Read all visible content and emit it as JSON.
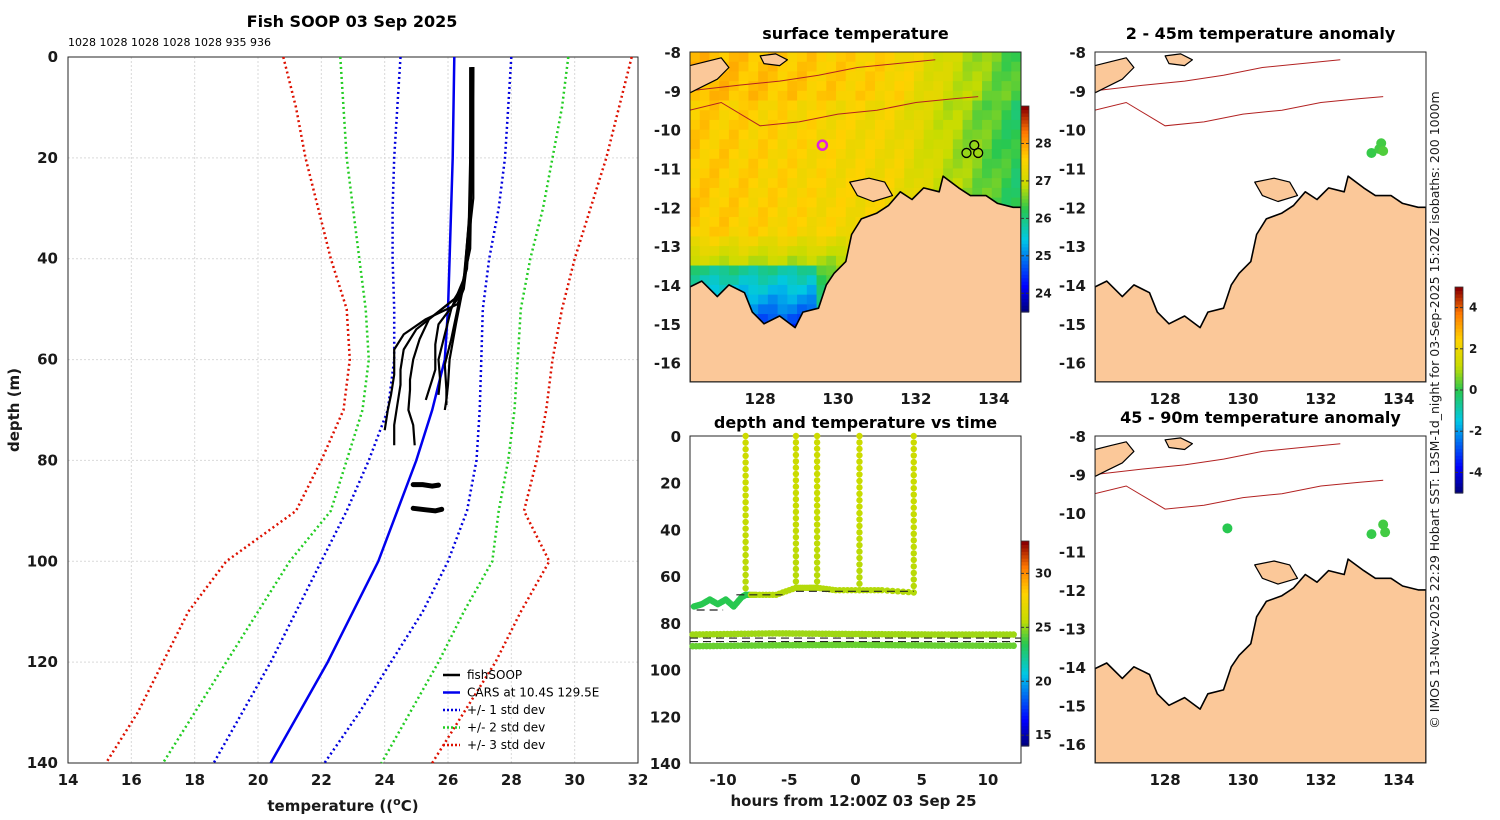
{
  "figure_title": "Fish SOOP 03 Sep 2025",
  "drop_labels": "1028 1028 1028 1028 1028 935 936",
  "side_text": "© IMOS 13-Nov-2025 22:29 Hobart SST: L3SM-1d_night for 03-Sep-2025 15:20Z isobaths: 200  1000m",
  "colors": {
    "profile": "#000000",
    "cars": "#0000ee",
    "std1": "#0000dd",
    "std2": "#22cc22",
    "std3": "#dd1100",
    "land": "#fbc899",
    "isobath": "#b22222"
  },
  "chart_data": [
    {
      "id": "profile",
      "type": "line",
      "title": "Fish SOOP 03 Sep 2025",
      "xlabel": "temperature (°C)",
      "ylabel": "depth (m)",
      "xlim": [
        14,
        32
      ],
      "ylim": [
        140,
        0
      ],
      "xticks": [
        14,
        16,
        18,
        20,
        22,
        24,
        26,
        28,
        30,
        32
      ],
      "yticks": [
        0,
        20,
        40,
        60,
        80,
        100,
        120,
        140
      ],
      "grid": true,
      "legend_position": "bottom-right",
      "legend": [
        "fishSOOP",
        "CARS at 10.4S 129.5E",
        "+/- 1 std dev",
        "+/- 2 std dev",
        "+/- 3 std dev"
      ],
      "series": [
        {
          "name": "CARS at 10.4S 129.5E",
          "style": "solid",
          "points": [
            [
              26.2,
              0
            ],
            [
              26.15,
              20
            ],
            [
              26.05,
              40
            ],
            [
              26.0,
              50
            ],
            [
              25.9,
              60
            ],
            [
              25.5,
              70
            ],
            [
              25.0,
              80
            ],
            [
              24.4,
              90
            ],
            [
              23.8,
              100
            ],
            [
              23.0,
              110
            ],
            [
              22.2,
              120
            ],
            [
              21.3,
              130
            ],
            [
              20.4,
              140
            ]
          ]
        },
        {
          "name": "+/- 1 std dev (low)",
          "style": "dotted",
          "color_key": "std1",
          "points": [
            [
              24.5,
              0
            ],
            [
              24.4,
              10
            ],
            [
              24.3,
              20
            ],
            [
              24.25,
              30
            ],
            [
              24.25,
              40
            ],
            [
              24.3,
              50
            ],
            [
              24.3,
              60
            ],
            [
              24.1,
              70
            ],
            [
              23.5,
              80
            ],
            [
              22.8,
              90
            ],
            [
              22.0,
              100
            ],
            [
              21.2,
              110
            ],
            [
              20.4,
              120
            ],
            [
              19.5,
              130
            ],
            [
              18.6,
              140
            ]
          ]
        },
        {
          "name": "+/- 1 std dev (high)",
          "style": "dotted",
          "color_key": "std1",
          "points": [
            [
              28.0,
              0
            ],
            [
              27.9,
              10
            ],
            [
              27.8,
              20
            ],
            [
              27.6,
              30
            ],
            [
              27.3,
              40
            ],
            [
              27.1,
              50
            ],
            [
              27.05,
              60
            ],
            [
              27.0,
              70
            ],
            [
              26.9,
              80
            ],
            [
              26.6,
              90
            ],
            [
              26.0,
              100
            ],
            [
              25.2,
              110
            ],
            [
              24.2,
              120
            ],
            [
              23.2,
              130
            ],
            [
              22.1,
              140
            ]
          ]
        },
        {
          "name": "+/- 2 std dev (low)",
          "style": "dotted",
          "color_key": "std2",
          "points": [
            [
              22.6,
              0
            ],
            [
              22.7,
              10
            ],
            [
              22.8,
              20
            ],
            [
              23.0,
              30
            ],
            [
              23.2,
              40
            ],
            [
              23.4,
              50
            ],
            [
              23.5,
              60
            ],
            [
              23.3,
              70
            ],
            [
              22.8,
              80
            ],
            [
              22.3,
              90
            ],
            [
              21.0,
              100
            ],
            [
              20.0,
              110
            ],
            [
              19.0,
              120
            ],
            [
              18.0,
              130
            ],
            [
              17.0,
              140
            ]
          ]
        },
        {
          "name": "+/- 2 std dev (high)",
          "style": "dotted",
          "color_key": "std2",
          "points": [
            [
              29.8,
              0
            ],
            [
              29.6,
              10
            ],
            [
              29.3,
              20
            ],
            [
              29.0,
              30
            ],
            [
              28.6,
              40
            ],
            [
              28.3,
              50
            ],
            [
              28.2,
              60
            ],
            [
              28.1,
              70
            ],
            [
              27.9,
              80
            ],
            [
              27.6,
              90
            ],
            [
              27.4,
              100
            ],
            [
              26.5,
              110
            ],
            [
              25.7,
              120
            ],
            [
              24.8,
              130
            ],
            [
              23.9,
              140
            ]
          ]
        },
        {
          "name": "+/- 3 std dev (low)",
          "style": "dotted",
          "color_key": "std3",
          "points": [
            [
              20.8,
              0
            ],
            [
              21.2,
              10
            ],
            [
              21.5,
              20
            ],
            [
              21.9,
              30
            ],
            [
              22.3,
              40
            ],
            [
              22.8,
              50
            ],
            [
              22.9,
              60
            ],
            [
              22.7,
              70
            ],
            [
              22.0,
              80
            ],
            [
              21.2,
              90
            ],
            [
              19.0,
              100
            ],
            [
              17.8,
              110
            ],
            [
              17.0,
              120
            ],
            [
              16.2,
              130
            ],
            [
              15.2,
              140
            ]
          ]
        },
        {
          "name": "+/- 3 std dev (high)",
          "style": "dotted",
          "color_key": "std3",
          "points": [
            [
              31.8,
              0
            ],
            [
              31.4,
              10
            ],
            [
              31.0,
              20
            ],
            [
              30.5,
              30
            ],
            [
              30.0,
              40
            ],
            [
              29.6,
              50
            ],
            [
              29.3,
              60
            ],
            [
              29.1,
              70
            ],
            [
              28.8,
              80
            ],
            [
              28.4,
              90
            ],
            [
              29.2,
              100
            ],
            [
              28.3,
              110
            ],
            [
              27.5,
              120
            ],
            [
              26.5,
              130
            ],
            [
              25.5,
              140
            ]
          ]
        }
      ],
      "profiles": [
        [
          [
            26.7,
            2
          ],
          [
            26.7,
            20
          ],
          [
            26.65,
            35
          ],
          [
            26.5,
            45
          ],
          [
            26.2,
            48
          ],
          [
            25.4,
            52
          ],
          [
            25.1,
            56
          ],
          [
            24.9,
            60
          ],
          [
            24.8,
            64
          ],
          [
            24.8,
            66
          ],
          [
            24.75,
            70
          ],
          [
            24.9,
            73
          ],
          [
            24.95,
            77
          ]
        ],
        [
          [
            26.75,
            2
          ],
          [
            26.75,
            20
          ],
          [
            26.7,
            38
          ],
          [
            26.4,
            47
          ],
          [
            25.8,
            50
          ],
          [
            25.0,
            54
          ],
          [
            24.6,
            58
          ],
          [
            24.5,
            62
          ],
          [
            24.5,
            65
          ],
          [
            24.4,
            69
          ],
          [
            24.3,
            73
          ],
          [
            24.3,
            77
          ]
        ],
        [
          [
            26.75,
            2
          ],
          [
            26.7,
            20
          ],
          [
            26.7,
            36
          ],
          [
            26.5,
            46
          ],
          [
            26.3,
            49
          ],
          [
            25.3,
            52
          ],
          [
            24.6,
            55
          ],
          [
            24.3,
            58
          ],
          [
            24.3,
            63
          ],
          [
            24.2,
            67
          ],
          [
            24.1,
            70
          ],
          [
            24.0,
            74
          ]
        ],
        [
          [
            26.8,
            2
          ],
          [
            26.75,
            25
          ],
          [
            26.6,
            42
          ],
          [
            26.3,
            48
          ],
          [
            25.7,
            53
          ],
          [
            25.6,
            57
          ],
          [
            25.6,
            62
          ],
          [
            25.5,
            64
          ],
          [
            25.4,
            66
          ],
          [
            25.3,
            68
          ]
        ],
        [
          [
            26.8,
            2
          ],
          [
            26.7,
            30
          ],
          [
            26.5,
            44
          ],
          [
            26.1,
            50
          ],
          [
            25.9,
            55
          ],
          [
            25.7,
            60
          ],
          [
            25.75,
            64
          ],
          [
            25.7,
            67
          ]
        ],
        [
          [
            26.8,
            2
          ],
          [
            26.8,
            28
          ],
          [
            26.55,
            42
          ],
          [
            26.3,
            50
          ],
          [
            26.1,
            56
          ],
          [
            25.9,
            61
          ],
          [
            25.95,
            66
          ],
          [
            25.95,
            69
          ]
        ],
        [
          [
            26.8,
            2
          ],
          [
            26.75,
            25
          ],
          [
            26.5,
            45
          ],
          [
            26.25,
            53
          ],
          [
            26.05,
            60
          ],
          [
            26.0,
            65
          ],
          [
            25.95,
            68
          ],
          [
            25.9,
            70
          ]
        ]
      ],
      "blobs": [
        [
          [
            24.9,
            84.8
          ],
          [
            25.2,
            84.8
          ],
          [
            25.5,
            85.1
          ],
          [
            25.7,
            84.9
          ]
        ],
        [
          [
            24.9,
            89.5
          ],
          [
            25.3,
            89.8
          ],
          [
            25.6,
            90.0
          ],
          [
            25.8,
            89.7
          ]
        ]
      ]
    },
    {
      "id": "sst_map",
      "type": "heatmap",
      "title": "surface temperature",
      "xlim": [
        126.2,
        134.7
      ],
      "ylim": [
        -16.5,
        -8
      ],
      "xticks": [
        128,
        130,
        132,
        134
      ],
      "yticks": [
        -8,
        -9,
        -10,
        -11,
        -12,
        -13,
        -14,
        -15,
        -16
      ],
      "colorbar_ticks": [
        24,
        25,
        26,
        27,
        28
      ],
      "colorbar_range": [
        23.5,
        29.0
      ],
      "markers": [
        {
          "lon": 129.6,
          "lat": -10.4,
          "style": "magenta-ring"
        },
        {
          "lon": 133.3,
          "lat": -10.6,
          "style": "black-ring"
        },
        {
          "lon": 133.5,
          "lat": -10.4,
          "style": "black-ring"
        },
        {
          "lon": 133.6,
          "lat": -10.6,
          "style": "black-ring"
        }
      ]
    },
    {
      "id": "time_series",
      "type": "scatter",
      "title": "depth and temperature vs time",
      "xlabel": "hours from 12:00Z 03 Sep 25",
      "xlim": [
        -12.5,
        12.5
      ],
      "ylim": [
        140,
        0
      ],
      "xticks": [
        -10,
        -5,
        0,
        5,
        10
      ],
      "yticks": [
        0,
        20,
        40,
        60,
        80,
        100,
        120,
        140
      ],
      "colorbar_ticks": [
        15,
        20,
        25,
        30
      ],
      "colorbar_range": [
        14,
        33
      ],
      "spikes": [
        {
          "t": -8.3,
          "bottom": 68
        },
        {
          "t": -4.5,
          "bottom": 65
        },
        {
          "t": -2.9,
          "bottom": 65
        },
        {
          "t": 0.3,
          "bottom": 66
        },
        {
          "t": 4.4,
          "bottom": 67
        }
      ],
      "bottom_track": [
        [
          -12.2,
          73
        ],
        [
          -11.6,
          72
        ],
        [
          -11.0,
          70
        ],
        [
          -10.4,
          72
        ],
        [
          -9.8,
          70
        ],
        [
          -9.2,
          73
        ],
        [
          -8.6,
          69
        ],
        [
          -8.3,
          68
        ],
        [
          -7.5,
          68
        ],
        [
          -6.0,
          68
        ],
        [
          -4.5,
          65
        ],
        [
          -3.5,
          65
        ],
        [
          -2.9,
          65
        ],
        [
          -1.5,
          66
        ],
        [
          0.3,
          66
        ],
        [
          2.0,
          66
        ],
        [
          4.4,
          67
        ]
      ],
      "near_bottom": [
        [
          -12.3,
          85
        ],
        [
          -6,
          84.5
        ],
        [
          0,
          84.8
        ],
        [
          6,
          85
        ],
        [
          12.2,
          85
        ]
      ],
      "deep_band": [
        [
          -12.3,
          90
        ],
        [
          -6,
          89.6
        ],
        [
          0,
          89.4
        ],
        [
          6,
          89.7
        ],
        [
          12.2,
          89.8
        ]
      ],
      "dashed_lines": [
        {
          "y": 74.5,
          "x0": -12.0,
          "x1": -10.0
        },
        {
          "y": 68.0,
          "x0": -9.0,
          "x1": -5.5
        },
        {
          "y": 66.5,
          "x0": -4.5,
          "x1": 4.4
        },
        {
          "y": 86.5,
          "x0": -12.5,
          "x1": 12.5
        },
        {
          "y": 88.0,
          "x0": -12.5,
          "x1": 12.5
        }
      ]
    },
    {
      "id": "anom_2_45",
      "type": "heatmap",
      "title": "2 - 45m temperature anomaly",
      "xlim": [
        126.2,
        134.7
      ],
      "ylim": [
        -16.5,
        -8
      ],
      "xticks": [
        128,
        130,
        132,
        134
      ],
      "yticks": [
        -8,
        -9,
        -10,
        -11,
        -12,
        -13,
        -14,
        -15,
        -16
      ],
      "points": [
        {
          "lon": 133.3,
          "lat": -10.6,
          "anomaly": 0.1
        },
        {
          "lon": 133.5,
          "lat": -10.5,
          "anomaly": 0.2
        },
        {
          "lon": 133.55,
          "lat": -10.35,
          "anomaly": 0.2
        },
        {
          "lon": 133.6,
          "lat": -10.55,
          "anomaly": 0.3
        }
      ]
    },
    {
      "id": "anom_45_90",
      "type": "heatmap",
      "title": "45 - 90m temperature anomaly",
      "xlim": [
        126.2,
        134.7
      ],
      "ylim": [
        -16.5,
        -8
      ],
      "xticks": [
        128,
        130,
        132,
        134
      ],
      "yticks": [
        -8,
        -9,
        -10,
        -11,
        -12,
        -13,
        -14,
        -15,
        -16
      ],
      "colorbar_ticks": [
        -4,
        -2,
        0,
        2,
        4
      ],
      "colorbar_range": [
        -5,
        5
      ],
      "points": [
        {
          "lon": 129.6,
          "lat": -10.4,
          "anomaly": 0.0
        },
        {
          "lon": 133.3,
          "lat": -10.55,
          "anomaly": 0.1
        },
        {
          "lon": 133.6,
          "lat": -10.3,
          "anomaly": 0.2
        },
        {
          "lon": 133.65,
          "lat": -10.5,
          "anomaly": 0.2
        }
      ]
    }
  ]
}
